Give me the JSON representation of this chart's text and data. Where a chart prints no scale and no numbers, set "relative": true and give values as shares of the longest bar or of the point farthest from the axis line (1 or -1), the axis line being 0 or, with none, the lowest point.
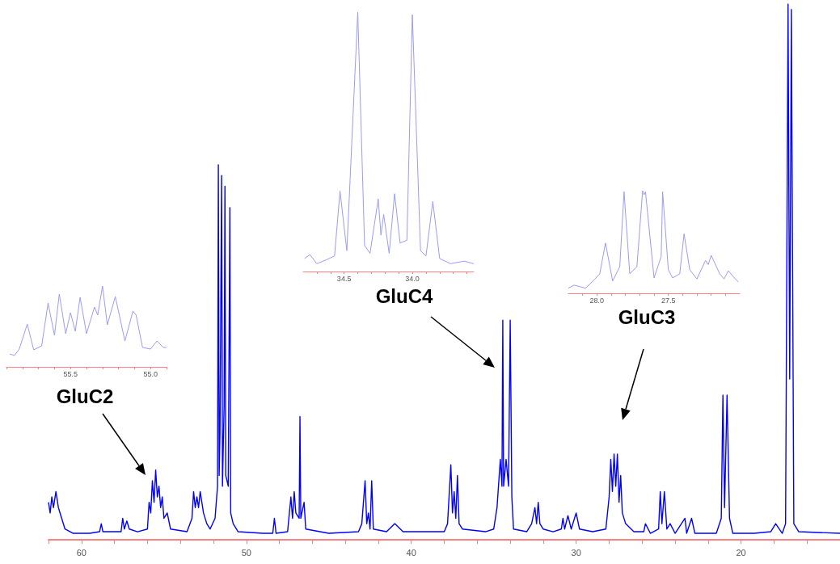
{
  "chart_data": [
    {
      "type": "line",
      "relative": true,
      "xlim": [
        62,
        14
      ],
      "xticks": [
        {
          "value": 62,
          "label": null
        },
        60,
        {
          "value": 58,
          "label": null
        },
        {
          "value": 56,
          "label": null
        },
        {
          "value": 54,
          "label": null
        },
        {
          "value": 52,
          "label": null
        },
        50,
        {
          "value": 48,
          "label": null
        },
        {
          "value": 46,
          "label": null
        },
        {
          "value": 44,
          "label": null
        },
        {
          "value": 42,
          "label": null
        },
        40,
        {
          "value": 38,
          "label": null
        },
        {
          "value": 36,
          "label": null
        },
        {
          "value": 34,
          "label": null
        },
        {
          "value": 32,
          "label": null
        },
        30,
        {
          "value": 28,
          "label": null
        },
        {
          "value": 26,
          "label": null
        },
        {
          "value": 24,
          "label": null
        },
        {
          "value": 22,
          "label": null
        },
        20,
        {
          "value": 18,
          "label": null
        },
        {
          "value": 16,
          "label": null
        }
      ],
      "series": [
        {
          "color": "#0000ff",
          "x": [
            62.0,
            61.9,
            61.8,
            61.7,
            61.55,
            61.4,
            61.2,
            61.0,
            60.5,
            59.5,
            58.9,
            58.8,
            58.7,
            57.6,
            57.5,
            57.4,
            57.25,
            57.1,
            56.6,
            56.0,
            55.9,
            55.8,
            55.7,
            55.6,
            55.5,
            55.4,
            55.3,
            55.2,
            55.1,
            55.0,
            54.8,
            54.6,
            53.6,
            53.3,
            53.2,
            53.1,
            53.0,
            52.9,
            52.8,
            52.6,
            52.4,
            52.2,
            51.9,
            51.75,
            51.7,
            51.65,
            51.6,
            51.5,
            51.45,
            51.35,
            51.3,
            51.25,
            51.1,
            51.0,
            50.95,
            50.8,
            50.5,
            49.0,
            48.4,
            48.3,
            48.2,
            47.5,
            47.3,
            47.2,
            47.1,
            47.0,
            46.8,
            46.75,
            46.7,
            46.5,
            46.4,
            45.0,
            43.2,
            43.0,
            42.8,
            42.7,
            42.6,
            42.5,
            42.4,
            42.3,
            41.5,
            41.0,
            40.5,
            38.0,
            37.8,
            37.6,
            37.5,
            37.4,
            37.3,
            37.2,
            37.1,
            36.9,
            35.5,
            35.0,
            34.8,
            34.6,
            34.5,
            34.45,
            34.4,
            34.25,
            34.1,
            34.0,
            33.9,
            33.8,
            33.0,
            32.7,
            32.5,
            32.4,
            32.3,
            32.2,
            32.0,
            31.4,
            30.9,
            30.8,
            30.7,
            30.5,
            30.3,
            30.1,
            30.0,
            29.8,
            29.0,
            28.2,
            28.0,
            27.9,
            27.8,
            27.7,
            27.6,
            27.5,
            27.4,
            27.3,
            27.2,
            27.0,
            26.5,
            25.9,
            25.8,
            25.5,
            25.0,
            24.9,
            24.8,
            24.65,
            24.5,
            24.3,
            24.0,
            23.4,
            23.3,
            23.0,
            22.8,
            21.5,
            21.2,
            21.1,
            21.0,
            20.85,
            20.7,
            20.5,
            19.2,
            18.2,
            17.9,
            17.5,
            17.3,
            17.15,
            17.05,
            16.95,
            16.8,
            16.5,
            14.0
          ],
          "values": [
            0.07,
            0.05,
            0.08,
            0.06,
            0.09,
            0.06,
            0.04,
            0.02,
            0.012,
            0.012,
            0.015,
            0.03,
            0.015,
            0.015,
            0.04,
            0.02,
            0.035,
            0.02,
            0.015,
            0.02,
            0.07,
            0.05,
            0.11,
            0.07,
            0.13,
            0.08,
            0.1,
            0.06,
            0.08,
            0.04,
            0.05,
            0.02,
            0.015,
            0.04,
            0.09,
            0.06,
            0.08,
            0.06,
            0.09,
            0.05,
            0.03,
            0.02,
            0.04,
            0.1,
            0.7,
            0.12,
            0.2,
            0.68,
            0.1,
            0.25,
            0.66,
            0.12,
            0.1,
            0.62,
            0.05,
            0.03,
            0.015,
            0.012,
            0.012,
            0.04,
            0.012,
            0.015,
            0.08,
            0.04,
            0.09,
            0.05,
            0.04,
            0.23,
            0.04,
            0.07,
            0.02,
            0.012,
            0.015,
            0.03,
            0.11,
            0.03,
            0.05,
            0.02,
            0.11,
            0.02,
            0.015,
            0.03,
            0.015,
            0.015,
            0.03,
            0.14,
            0.05,
            0.09,
            0.04,
            0.12,
            0.03,
            0.02,
            0.015,
            0.02,
            0.06,
            0.15,
            0.1,
            0.41,
            0.1,
            0.15,
            0.1,
            0.41,
            0.08,
            0.02,
            0.015,
            0.03,
            0.06,
            0.03,
            0.07,
            0.03,
            0.02,
            0.015,
            0.02,
            0.04,
            0.02,
            0.045,
            0.02,
            0.04,
            0.05,
            0.02,
            0.015,
            0.02,
            0.08,
            0.15,
            0.09,
            0.16,
            0.1,
            0.16,
            0.07,
            0.12,
            0.05,
            0.03,
            0.015,
            0.015,
            0.03,
            0.012,
            0.02,
            0.09,
            0.03,
            0.09,
            0.02,
            0.03,
            0.012,
            0.04,
            0.012,
            0.04,
            0.012,
            0.012,
            0.04,
            0.27,
            0.06,
            0.27,
            0.04,
            0.012,
            0.012,
            0.015,
            0.03,
            0.012,
            0.03,
            1.0,
            0.3,
            0.99,
            0.03,
            0.015,
            0.012
          ]
        }
      ],
      "annotations": [
        "GluC2",
        "GluC4",
        "GluC3"
      ]
    },
    {
      "type": "line",
      "relative": true,
      "xlim": [
        55.9,
        54.9
      ],
      "xticks": [
        {
          "value": 55.9,
          "label": null
        },
        {
          "value": 55.8,
          "label": null
        },
        {
          "value": 55.7,
          "label": null
        },
        {
          "value": 55.6,
          "label": null
        },
        {
          "value": 55.5,
          "label": "55.5"
        },
        {
          "value": 55.4,
          "label": null
        },
        {
          "value": 55.3,
          "label": null
        },
        {
          "value": 55.2,
          "label": null
        },
        {
          "value": 55.1,
          "label": null
        },
        {
          "value": 55.0,
          "label": "55.0"
        },
        {
          "value": 54.9,
          "label": null
        }
      ],
      "series": [
        {
          "color": "#9a9aff",
          "x": [
            55.88,
            55.85,
            55.82,
            55.77,
            55.73,
            55.68,
            55.64,
            55.6,
            55.57,
            55.53,
            55.5,
            55.47,
            55.44,
            55.4,
            55.35,
            55.33,
            55.3,
            55.27,
            55.22,
            55.16,
            55.11,
            55.09,
            55.05,
            55.0,
            54.96,
            54.92,
            54.9
          ],
          "values": [
            0.16,
            0.14,
            0.22,
            0.53,
            0.21,
            0.26,
            0.79,
            0.39,
            0.9,
            0.41,
            0.67,
            0.44,
            0.86,
            0.41,
            0.74,
            0.64,
            1.0,
            0.52,
            0.87,
            0.32,
            0.69,
            0.64,
            0.24,
            0.22,
            0.32,
            0.24,
            0.24
          ]
        }
      ]
    },
    {
      "type": "line",
      "relative": true,
      "xlim": [
        34.8,
        33.55
      ],
      "xticks": [
        {
          "value": 34.7,
          "label": null
        },
        {
          "value": 34.6,
          "label": null
        },
        {
          "value": 34.5,
          "label": "34.5"
        },
        {
          "value": 34.4,
          "label": null
        },
        {
          "value": 34.3,
          "label": null
        },
        {
          "value": 34.2,
          "label": null
        },
        {
          "value": 34.1,
          "label": null
        },
        {
          "value": 34.0,
          "label": "34.0"
        },
        {
          "value": 33.9,
          "label": null
        },
        {
          "value": 33.8,
          "label": null
        },
        {
          "value": 33.7,
          "label": null
        },
        {
          "value": 33.6,
          "label": null
        }
      ],
      "series": [
        {
          "color": "#9a9aff",
          "x": [
            34.79,
            34.75,
            34.7,
            34.63,
            34.57,
            34.53,
            34.48,
            34.4,
            34.35,
            34.31,
            34.25,
            34.23,
            34.21,
            34.17,
            34.13,
            34.09,
            34.04,
            34.0,
            33.94,
            33.9,
            33.85,
            33.8,
            33.72,
            33.62,
            33.55
          ],
          "values": [
            0.05,
            0.065,
            0.03,
            0.045,
            0.06,
            0.31,
            0.08,
            1.0,
            0.1,
            0.07,
            0.28,
            0.14,
            0.22,
            0.07,
            0.3,
            0.11,
            0.12,
            0.99,
            0.08,
            0.06,
            0.27,
            0.05,
            0.03,
            0.04,
            0.03
          ]
        }
      ]
    },
    {
      "type": "line",
      "relative": true,
      "xlim": [
        28.2,
        27.0
      ],
      "xticks": [
        {
          "value": 28.1,
          "label": null
        },
        {
          "value": 28.0,
          "label": "28.0"
        },
        {
          "value": 27.9,
          "label": null
        },
        {
          "value": 27.8,
          "label": null
        },
        {
          "value": 27.7,
          "label": null
        },
        {
          "value": 27.6,
          "label": null
        },
        {
          "value": 27.5,
          "label": "27.5"
        },
        {
          "value": 27.4,
          "label": null
        },
        {
          "value": 27.3,
          "label": null
        },
        {
          "value": 27.2,
          "label": null
        },
        {
          "value": 27.1,
          "label": null
        }
      ],
      "series": [
        {
          "color": "#9a9aff",
          "x": [
            28.2,
            28.16,
            28.08,
            28.02,
            27.98,
            27.94,
            27.89,
            27.84,
            27.81,
            27.77,
            27.72,
            27.68,
            27.67,
            27.66,
            27.6,
            27.55,
            27.54,
            27.5,
            27.47,
            27.42,
            27.39,
            27.35,
            27.3,
            27.24,
            27.22,
            27.2,
            27.14,
            27.11,
            27.08,
            27.05,
            27.01
          ],
          "values": [
            0.05,
            0.08,
            0.05,
            0.13,
            0.19,
            0.49,
            0.12,
            0.26,
            0.99,
            0.19,
            0.26,
            1.0,
            0.96,
            0.99,
            0.15,
            0.36,
            0.99,
            0.23,
            0.15,
            0.19,
            0.58,
            0.23,
            0.14,
            0.32,
            0.28,
            0.37,
            0.19,
            0.14,
            0.22,
            0.17,
            0.11
          ]
        }
      ]
    }
  ]
}
